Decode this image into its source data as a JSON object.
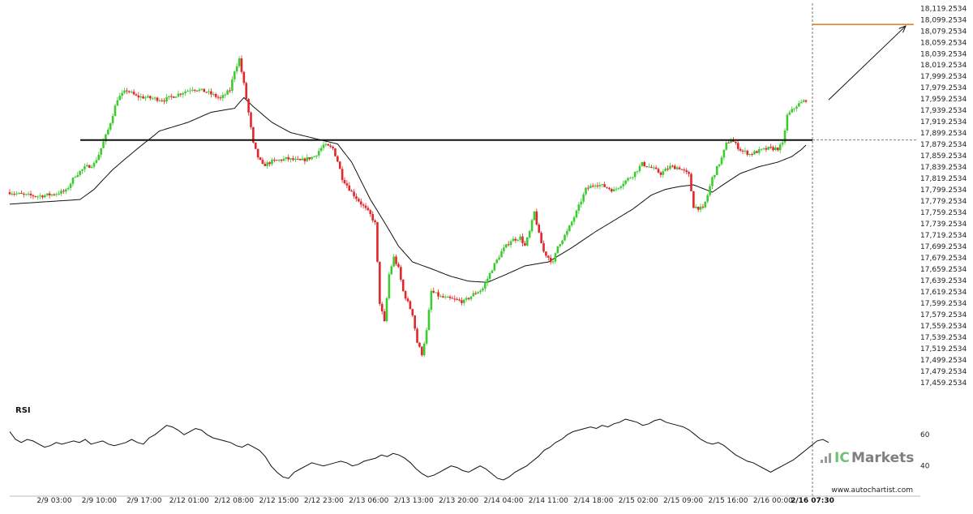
{
  "chart_data": [
    {
      "type": "candlestick",
      "title": "",
      "xlabel": "",
      "ylabel": "",
      "x_ticks": [
        "2/9 03:00",
        "2/9 10:00",
        "2/9 17:00",
        "2/12 01:00",
        "2/12 08:00",
        "2/12 15:00",
        "2/12 23:00",
        "2/13 06:00",
        "2/13 13:00",
        "2/13 20:00",
        "2/14 04:00",
        "2/14 11:00",
        "2/14 18:00",
        "2/15 02:00",
        "2/15 09:00",
        "2/15 16:00",
        "2/16 00:00"
      ],
      "current_date_label": "2/16 07:30",
      "y_ticks": [
        "18,119.2534",
        "18,099.2534",
        "18,079.2534",
        "18,059.2534",
        "18,039.2534",
        "18,019.2534",
        "17,999.2534",
        "17,979.2534",
        "17,959.2534",
        "17,939.2534",
        "17,919.2534",
        "17,899.2534",
        "17,879.2534",
        "17,859.2534",
        "17,839.2534",
        "17,819.2534",
        "17,799.2534",
        "17,779.2534",
        "17,759.2534",
        "17,739.2534",
        "17,719.2534",
        "17,699.2534",
        "17,679.2534",
        "17,659.2534",
        "17,639.2534",
        "17,619.2534",
        "17,599.2534",
        "17,579.2534",
        "17,559.2534",
        "17,539.2534",
        "17,519.2534",
        "17,499.2534",
        "17,479.2534",
        "17,459.2534"
      ],
      "ylim": [
        17449,
        18124
      ],
      "resistance_level": 17887,
      "target_level": 18091,
      "price_path_anchors": [
        [
          0,
          17795
        ],
        [
          6,
          17790
        ],
        [
          12,
          17788
        ],
        [
          18,
          17791
        ],
        [
          24,
          17797
        ],
        [
          28,
          17825
        ],
        [
          32,
          17838
        ],
        [
          36,
          17845
        ],
        [
          38,
          17862
        ],
        [
          42,
          17905
        ],
        [
          46,
          17960
        ],
        [
          50,
          17975
        ],
        [
          54,
          17964
        ],
        [
          58,
          17962
        ],
        [
          62,
          17960
        ],
        [
          66,
          17958
        ],
        [
          72,
          17968
        ],
        [
          78,
          17978
        ],
        [
          84,
          17972
        ],
        [
          90,
          17960
        ],
        [
          94,
          17975
        ],
        [
          96,
          18010
        ],
        [
          98,
          18030
        ],
        [
          100,
          17985
        ],
        [
          102,
          17935
        ],
        [
          104,
          17880
        ],
        [
          106,
          17857
        ],
        [
          108,
          17842
        ],
        [
          112,
          17849
        ],
        [
          118,
          17854
        ],
        [
          124,
          17850
        ],
        [
          130,
          17858
        ],
        [
          134,
          17878
        ],
        [
          138,
          17872
        ],
        [
          140,
          17850
        ],
        [
          142,
          17820
        ],
        [
          146,
          17795
        ],
        [
          150,
          17775
        ],
        [
          154,
          17755
        ],
        [
          156,
          17740
        ],
        [
          158,
          17600
        ],
        [
          160,
          17565
        ],
        [
          162,
          17650
        ],
        [
          164,
          17680
        ],
        [
          166,
          17660
        ],
        [
          168,
          17620
        ],
        [
          170,
          17600
        ],
        [
          172,
          17580
        ],
        [
          174,
          17530
        ],
        [
          176,
          17510
        ],
        [
          178,
          17550
        ],
        [
          180,
          17620
        ],
        [
          184,
          17610
        ],
        [
          190,
          17605
        ],
        [
          194,
          17602
        ],
        [
          198,
          17615
        ],
        [
          202,
          17625
        ],
        [
          206,
          17660
        ],
        [
          210,
          17690
        ],
        [
          214,
          17710
        ],
        [
          218,
          17715
        ],
        [
          220,
          17700
        ],
        [
          222,
          17725
        ],
        [
          224,
          17760
        ],
        [
          226,
          17720
        ],
        [
          228,
          17690
        ],
        [
          230,
          17680
        ],
        [
          232,
          17670
        ],
        [
          234,
          17700
        ],
        [
          238,
          17725
        ],
        [
          242,
          17760
        ],
        [
          246,
          17800
        ],
        [
          250,
          17810
        ],
        [
          254,
          17805
        ],
        [
          258,
          17798
        ],
        [
          262,
          17812
        ],
        [
          266,
          17825
        ],
        [
          270,
          17845
        ],
        [
          274,
          17838
        ],
        [
          278,
          17828
        ],
        [
          282,
          17840
        ],
        [
          286,
          17838
        ],
        [
          290,
          17825
        ],
        [
          292,
          17770
        ],
        [
          296,
          17765
        ],
        [
          298,
          17790
        ],
        [
          300,
          17820
        ],
        [
          304,
          17855
        ],
        [
          306,
          17880
        ],
        [
          308,
          17888
        ],
        [
          312,
          17870
        ],
        [
          316,
          17862
        ],
        [
          320,
          17868
        ],
        [
          324,
          17872
        ],
        [
          328,
          17872
        ],
        [
          330,
          17880
        ],
        [
          332,
          17930
        ],
        [
          336,
          17948
        ],
        [
          340,
          17958
        ]
      ],
      "ma_path_anchors": [
        [
          0,
          17774
        ],
        [
          30,
          17782
        ],
        [
          36,
          17800
        ],
        [
          44,
          17835
        ],
        [
          54,
          17870
        ],
        [
          64,
          17903
        ],
        [
          76,
          17918
        ],
        [
          86,
          17936
        ],
        [
          96,
          17943
        ],
        [
          100,
          17962
        ],
        [
          104,
          17946
        ],
        [
          112,
          17918
        ],
        [
          120,
          17900
        ],
        [
          128,
          17892
        ],
        [
          134,
          17886
        ],
        [
          140,
          17880
        ],
        [
          146,
          17848
        ],
        [
          150,
          17815
        ],
        [
          154,
          17782
        ],
        [
          160,
          17742
        ],
        [
          166,
          17700
        ],
        [
          172,
          17672
        ],
        [
          180,
          17660
        ],
        [
          188,
          17647
        ],
        [
          196,
          17638
        ],
        [
          204,
          17636
        ],
        [
          212,
          17650
        ],
        [
          220,
          17665
        ],
        [
          230,
          17672
        ],
        [
          240,
          17697
        ],
        [
          250,
          17725
        ],
        [
          258,
          17745
        ],
        [
          266,
          17765
        ],
        [
          274,
          17790
        ],
        [
          280,
          17800
        ],
        [
          286,
          17805
        ],
        [
          292,
          17808
        ],
        [
          300,
          17795
        ],
        [
          306,
          17812
        ],
        [
          312,
          17828
        ],
        [
          320,
          17840
        ],
        [
          328,
          17848
        ],
        [
          334,
          17858
        ],
        [
          338,
          17870
        ],
        [
          340,
          17878
        ]
      ]
    },
    {
      "type": "line",
      "title": "RSI",
      "y_ticks": [
        "60",
        "40"
      ],
      "ylim": [
        31,
        70
      ],
      "values": [
        62,
        57,
        55,
        57,
        56,
        54,
        52,
        53,
        55,
        54,
        55,
        56,
        55,
        57,
        54,
        55,
        56,
        54,
        53,
        54,
        55,
        57,
        55,
        54,
        58,
        60,
        63,
        66,
        65,
        63,
        60,
        62,
        64,
        63,
        60,
        58,
        57,
        56,
        55,
        53,
        52,
        54,
        52,
        50,
        46,
        40,
        36,
        33,
        32,
        36,
        38,
        40,
        42,
        41,
        40,
        41,
        42,
        43,
        42,
        40,
        41,
        43,
        44,
        45,
        47,
        46,
        48,
        47,
        45,
        42,
        38,
        35,
        33,
        34,
        36,
        38,
        40,
        39,
        37,
        36,
        38,
        40,
        38,
        35,
        32,
        31,
        33,
        36,
        38,
        40,
        43,
        46,
        50,
        52,
        55,
        57,
        60,
        62,
        63,
        64,
        65,
        64,
        66,
        65,
        67,
        68,
        70,
        69,
        68,
        66,
        67,
        69,
        70,
        68,
        67,
        66,
        65,
        63,
        60,
        57,
        55,
        54,
        55,
        53,
        50,
        47,
        45,
        43,
        42,
        40,
        38,
        36,
        38,
        40,
        42,
        44,
        47,
        50,
        53,
        56,
        57,
        55
      ]
    }
  ],
  "branding": {
    "ic": "IC",
    "markets": "Markets",
    "url": "www.autochartist.com"
  }
}
